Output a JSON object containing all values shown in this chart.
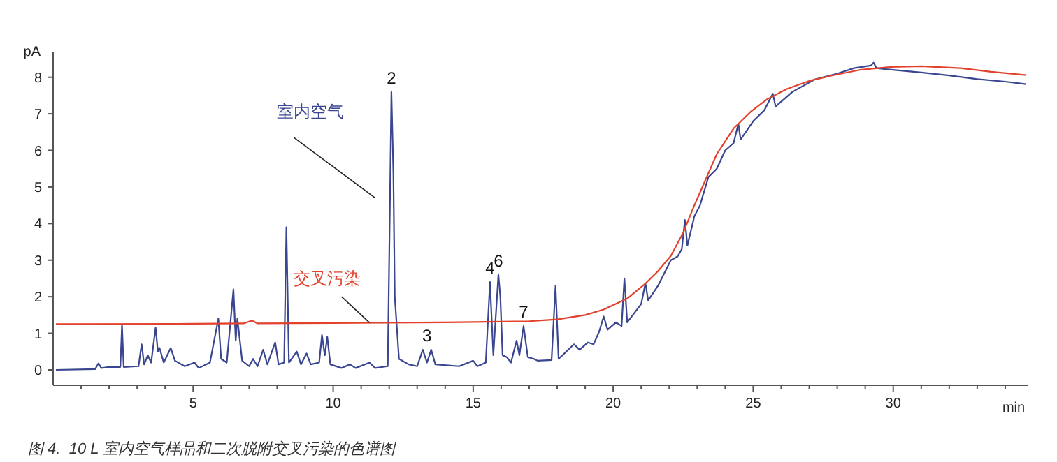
{
  "chart_data": {
    "type": "line",
    "xlabel": "min",
    "ylabel": "pA",
    "xlim": [
      0,
      34.8
    ],
    "ylim": [
      -0.42,
      8.7
    ],
    "xticks": [
      {
        "value": 1,
        "label": null
      },
      {
        "value": 2,
        "label": null
      },
      {
        "value": 3,
        "label": null
      },
      {
        "value": 4,
        "label": null
      },
      5,
      {
        "value": 6,
        "label": null
      },
      {
        "value": 7,
        "label": null
      },
      {
        "value": 8,
        "label": null
      },
      {
        "value": 9,
        "label": null
      },
      10,
      {
        "value": 11,
        "label": null
      },
      {
        "value": 12,
        "label": null
      },
      {
        "value": 13,
        "label": null
      },
      {
        "value": 14,
        "label": null
      },
      15,
      {
        "value": 16,
        "label": null
      },
      {
        "value": 17,
        "label": null
      },
      {
        "value": 18,
        "label": null
      },
      {
        "value": 19,
        "label": null
      },
      20,
      {
        "value": 21,
        "label": null
      },
      {
        "value": 22,
        "label": null
      },
      {
        "value": 23,
        "label": null
      },
      {
        "value": 24,
        "label": null
      },
      25,
      {
        "value": 26,
        "label": null
      },
      {
        "value": 27,
        "label": null
      },
      {
        "value": 28,
        "label": null
      },
      {
        "value": 29,
        "label": null
      },
      30,
      {
        "value": 31,
        "label": null
      },
      {
        "value": 32,
        "label": null
      },
      {
        "value": 33,
        "label": null
      },
      {
        "value": 34,
        "label": null
      }
    ],
    "yticks": [
      0,
      1,
      2,
      3,
      4,
      5,
      6,
      7,
      8
    ],
    "grid": false,
    "marker": "none",
    "line_style": "solid",
    "series": [
      {
        "name": "室内空气",
        "color": "#3a4690",
        "x": [
          0.1,
          1.5,
          1.62,
          1.72,
          2.0,
          2.4,
          2.46,
          2.52,
          3.05,
          3.16,
          3.25,
          3.38,
          3.5,
          3.66,
          3.74,
          3.8,
          3.95,
          4.2,
          4.35,
          4.7,
          5.05,
          5.2,
          5.6,
          5.9,
          6.0,
          6.2,
          6.44,
          6.52,
          6.58,
          6.75,
          7.0,
          7.14,
          7.3,
          7.5,
          7.65,
          7.93,
          8.05,
          8.25,
          8.33,
          8.42,
          8.7,
          8.85,
          9.05,
          9.2,
          9.5,
          9.6,
          9.7,
          9.79,
          9.9,
          10.3,
          10.6,
          10.8,
          11.3,
          11.5,
          11.95,
          12.08,
          12.15,
          12.2,
          12.35,
          12.7,
          13.0,
          13.2,
          13.35,
          13.5,
          13.65,
          14.5,
          15.0,
          15.15,
          15.45,
          15.6,
          15.72,
          15.9,
          15.97,
          16.05,
          16.2,
          16.35,
          16.55,
          16.65,
          16.8,
          16.95,
          17.17,
          17.3,
          17.8,
          17.94,
          18.05,
          18.6,
          18.8,
          19.1,
          19.3,
          19.5,
          19.66,
          19.8,
          20.1,
          20.3,
          20.4,
          20.5,
          20.8,
          21.0,
          21.15,
          21.25,
          21.6,
          22.06,
          22.3,
          22.45,
          22.56,
          22.65,
          22.9,
          23.1,
          23.4,
          23.7,
          24.0,
          24.3,
          24.47,
          24.55,
          25.0,
          25.4,
          25.7,
          25.8,
          26.4,
          27.2,
          28.0,
          28.6,
          29.2,
          29.3,
          29.4,
          30.0,
          31.0,
          32.0,
          33.0,
          34.0,
          34.75
        ],
        "values": [
          0,
          0.02,
          0.18,
          0.05,
          0.08,
          0.08,
          1.22,
          0.08,
          0.1,
          0.7,
          0.15,
          0.4,
          0.2,
          1.15,
          0.5,
          0.6,
          0.2,
          0.6,
          0.25,
          0.1,
          0.2,
          0.05,
          0.2,
          1.4,
          0.3,
          0.2,
          2.2,
          0.8,
          1.4,
          0.25,
          0.1,
          0.3,
          0.1,
          0.55,
          0.15,
          0.75,
          0.15,
          0.2,
          3.9,
          0.2,
          0.5,
          0.15,
          0.45,
          0.15,
          0.2,
          0.95,
          0.4,
          0.9,
          0.15,
          0.05,
          0.15,
          0.05,
          0.2,
          0.05,
          0.1,
          7.6,
          5.4,
          2.0,
          0.3,
          0.15,
          0.1,
          0.55,
          0.2,
          0.55,
          0.15,
          0.1,
          0.25,
          0.1,
          0.2,
          2.4,
          0.4,
          2.6,
          2.0,
          0.4,
          0.35,
          0.2,
          0.8,
          0.4,
          1.2,
          0.35,
          0.3,
          0.25,
          0.27,
          2.3,
          0.3,
          0.7,
          0.55,
          0.75,
          0.7,
          1.05,
          1.46,
          1.1,
          1.3,
          1.2,
          2.5,
          1.3,
          1.6,
          1.8,
          2.37,
          1.9,
          2.3,
          3.0,
          3.1,
          3.3,
          4.1,
          3.4,
          4.2,
          4.5,
          5.27,
          5.5,
          6.0,
          6.2,
          6.73,
          6.3,
          6.8,
          7.1,
          7.55,
          7.2,
          7.6,
          7.94,
          8.1,
          8.25,
          8.32,
          8.4,
          8.25,
          8.2,
          8.13,
          8.05,
          7.95,
          7.88,
          7.81
        ]
      },
      {
        "name": "交叉污染",
        "color": "#e2412c",
        "x": [
          0.1,
          5,
          6.8,
          7.1,
          7.3,
          10,
          14,
          17,
          18,
          19,
          19.66,
          20.5,
          21.15,
          21.6,
          22.06,
          22.5,
          22.9,
          23.3,
          23.7,
          24.3,
          24.9,
          25.5,
          26.2,
          27.0,
          27.9,
          28.8,
          29.9,
          31,
          32.4,
          33.5,
          34.75
        ],
        "values": [
          1.25,
          1.26,
          1.27,
          1.35,
          1.27,
          1.28,
          1.3,
          1.33,
          1.38,
          1.5,
          1.65,
          1.95,
          2.36,
          2.7,
          3.12,
          3.75,
          4.5,
          5.2,
          5.9,
          6.6,
          7.05,
          7.4,
          7.68,
          7.9,
          8.06,
          8.2,
          8.28,
          8.3,
          8.25,
          8.15,
          8.06
        ]
      }
    ],
    "annotations": [
      {
        "text": "2",
        "x": 12.08,
        "y": 7.6
      },
      {
        "text": "3",
        "x": 13.35,
        "y": 0.55
      },
      {
        "text": "4",
        "x": 15.6,
        "y": 2.4
      },
      {
        "text": "6",
        "x": 15.9,
        "y": 2.6
      },
      {
        "text": "7",
        "x": 16.8,
        "y": 1.2
      },
      "图 4.  10 L 室内空气样品和二次脱附交叉污染的色谱图"
    ]
  }
}
